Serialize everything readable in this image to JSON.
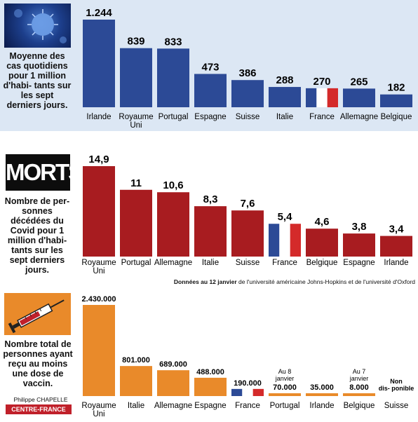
{
  "panels": {
    "cases": {
      "description": "Moyenne des cas quotidiens pour 1 million d'habi- tants sur les sept derniers jours."
    },
    "deaths": {
      "title": "MORTS",
      "description": "Nombre de per- sonnes décédées du Covid pour 1 million d'habi- tants sur les sept derniers jours."
    },
    "vaccinations": {
      "description": "Nombre total de personnes ayant reçu au moins une dose de vaccin."
    }
  },
  "source": {
    "bold": "Données au 12 janvier",
    "rest": " de l'université américaine Johns-Hopkins et de l'université d'Oxford"
  },
  "credit": {
    "name": "Philippe CHAPELLE",
    "org": "CENTRE-FRANCE"
  },
  "colors": {
    "cases": "#2c4a96",
    "deaths": "#a81c20",
    "vaccinations": "#e98a2a",
    "france_blue": "#2c4a96",
    "france_red": "#d42a2a"
  },
  "icons": {
    "cases": "virus-icon",
    "vaccinations": "syringe-icon"
  },
  "chart_data": [
    {
      "type": "bar",
      "categories": [
        "Irlande",
        "Royaume Uni",
        "Portugal",
        "Espagne",
        "Suisse",
        "Italie",
        "France",
        "Allemagne",
        "Belgique"
      ],
      "values": [
        1244,
        839,
        833,
        473,
        386,
        288,
        270,
        265,
        182
      ],
      "value_labels": [
        "1.244",
        "839",
        "833",
        "473",
        "386",
        "288",
        "270",
        "265",
        "182"
      ],
      "ylim": [
        0,
        1244
      ],
      "highlight": "France"
    },
    {
      "type": "bar",
      "categories": [
        "Royaume Uni",
        "Portugal",
        "Allemagne",
        "Italie",
        "Suisse",
        "France",
        "Belgique",
        "Espagne",
        "Irlande"
      ],
      "values": [
        14.9,
        11,
        10.6,
        8.3,
        7.6,
        5.4,
        4.6,
        3.8,
        3.4
      ],
      "value_labels": [
        "14,9",
        "11",
        "10,6",
        "8,3",
        "7,6",
        "5,4",
        "4,6",
        "3,8",
        "3,4"
      ],
      "ylim": [
        0,
        14.9
      ],
      "highlight": "France"
    },
    {
      "type": "bar",
      "categories": [
        "Royaume Uni",
        "Italie",
        "Allemagne",
        "Espagne",
        "France",
        "Portugal",
        "Irlande",
        "Belgique",
        "Suisse"
      ],
      "values": [
        2430000,
        801000,
        689000,
        488000,
        190000,
        70000,
        35000,
        8000,
        null
      ],
      "value_labels": [
        "2.430.000",
        "801.000",
        "689.000",
        "488.000",
        "190.000",
        "70.000",
        "35.000",
        "8.000",
        "Non dis- ponible"
      ],
      "notes": [
        "",
        "",
        "",
        "",
        "",
        "Au 8 janvier",
        "",
        "Au 7 janvier",
        ""
      ],
      "ylim": [
        0,
        2430000
      ],
      "highlight": "France"
    }
  ]
}
